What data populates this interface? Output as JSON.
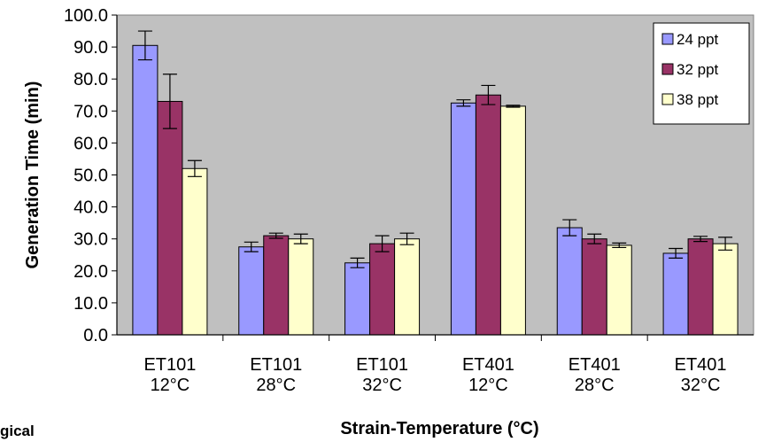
{
  "chart_data": {
    "type": "bar",
    "title": "",
    "xlabel": "Strain-Temperature (°C)",
    "ylabel": "Generation Time (min)",
    "ylim": [
      0,
      100
    ],
    "ytick_step": 10,
    "ytick_format_decimals": 1,
    "grid": false,
    "plot_background": "#c0c0c0",
    "legend_position": "top-right",
    "categories": [
      [
        "ET101",
        "12°C"
      ],
      [
        "ET101",
        "28°C"
      ],
      [
        "ET101",
        "32°C"
      ],
      [
        "ET401",
        "12°C"
      ],
      [
        "ET401",
        "28°C"
      ],
      [
        "ET401",
        "32°C"
      ]
    ],
    "series": [
      {
        "name": "24 ppt",
        "color": "#9999ff",
        "values": [
          90.5,
          27.5,
          22.5,
          72.5,
          33.5,
          25.5
        ],
        "errors": [
          4.5,
          1.5,
          1.5,
          1.0,
          2.5,
          1.5
        ]
      },
      {
        "name": "32 ppt",
        "color": "#993366",
        "values": [
          73.0,
          31.0,
          28.5,
          75.0,
          30.0,
          30.0
        ],
        "errors": [
          8.5,
          0.8,
          2.5,
          3.0,
          1.5,
          0.8
        ]
      },
      {
        "name": "38 ppt",
        "color": "#ffffcc",
        "values": [
          52.0,
          30.0,
          30.0,
          71.5,
          28.0,
          28.5
        ],
        "errors": [
          2.5,
          1.5,
          1.8,
          0.3,
          0.7,
          2.0
        ]
      }
    ]
  },
  "stray_caption": "gical"
}
